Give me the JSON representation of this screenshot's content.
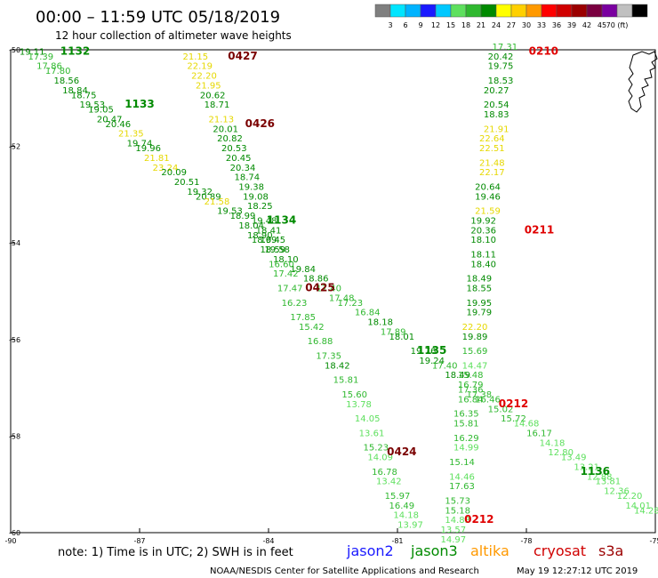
{
  "header": {
    "title": "00:00 – 11:59 UTC 05/18/2019",
    "subtitle": "12 hour collection of altimeter wave heights"
  },
  "colorbar": {
    "colors": [
      "#7f7f7f",
      "#00e5ff",
      "#00b3ff",
      "#1a1aff",
      "#00c8ff",
      "#5ee05e",
      "#2fb82f",
      "#008a00",
      "#ffff00",
      "#ffd000",
      "#ff9900",
      "#ff0000",
      "#d00000",
      "#9b0000",
      "#7a0040",
      "#7a00a0",
      "#c0c0c0",
      "#000000"
    ],
    "labels": [
      "3",
      "6",
      "9",
      "12",
      "15",
      "18",
      "21",
      "24",
      "27",
      "30",
      "33",
      "36",
      "39",
      "42",
      "45",
      "70 (ft)"
    ]
  },
  "footer": {
    "note": "note: 1) Time is in UTC; 2) SWH is in feet",
    "satellites": [
      {
        "name": "jason2",
        "color": "#1a1aff"
      },
      {
        "name": "jason3",
        "color": "#008a00"
      },
      {
        "name": "altika",
        "color": "#ff9900"
      },
      {
        "name": "cryosat",
        "color": "#d00000"
      },
      {
        "name": "s3a",
        "color": "#9b0000"
      }
    ],
    "credit": "NOAA/NESDIS Center for Satellite Applications and Research",
    "timestamp": "May 19 12:27:12 UTC 2019"
  },
  "chart_data": {
    "type": "scatter",
    "title": "00:00 – 11:59 UTC 05/18/2019",
    "xlabel": "",
    "ylabel": "",
    "xlim": [
      -90,
      -75
    ],
    "ylim": [
      -60,
      -50
    ],
    "x_ticks": [
      "-90",
      "-87",
      "-84",
      "-81",
      "-78",
      "-75"
    ],
    "y_ticks": [
      "-50",
      "-52",
      "-54",
      "-56",
      "-58",
      "-60"
    ],
    "color_map": {
      "18": "#008a00",
      "21": "#2fb82f",
      "15": "#5ee05e",
      "24": "#ffff00",
      "27": "#ffd000"
    },
    "tracks": [
      {
        "id": "descending-long",
        "points": [
          [
            -89.5,
            -50.1,
            "19.11"
          ],
          [
            -89.3,
            -50.2,
            "17.39"
          ],
          [
            -89.1,
            -50.4,
            "17.86"
          ],
          [
            -88.9,
            -50.5,
            "17.80"
          ],
          [
            -88.7,
            -50.7,
            "18.56"
          ],
          [
            -88.5,
            -50.9,
            "18.84"
          ],
          [
            -88.3,
            -51.0,
            "18.75"
          ],
          [
            -88.1,
            -51.2,
            "19.53"
          ],
          [
            -87.9,
            -51.3,
            "19.05"
          ],
          [
            -87.7,
            -51.5,
            "20.47"
          ],
          [
            -87.5,
            -51.6,
            "20.46"
          ],
          [
            -87.2,
            -51.8,
            "21.35"
          ],
          [
            -87.0,
            -52.0,
            "19.74"
          ],
          [
            -86.8,
            -52.1,
            "19.96"
          ],
          [
            -86.6,
            -52.3,
            "21.81"
          ],
          [
            -86.4,
            -52.5,
            "23.24"
          ],
          [
            -86.2,
            -52.6,
            "20.09"
          ],
          [
            -85.9,
            -52.8,
            "20.51"
          ],
          [
            -85.6,
            -53.0,
            "19.32"
          ],
          [
            -85.4,
            -53.1,
            "20.89"
          ],
          [
            -85.2,
            -53.2,
            "21.58"
          ],
          [
            -84.9,
            -53.4,
            "19.53"
          ],
          [
            -84.6,
            -53.5,
            "18.99"
          ],
          [
            -84.4,
            -53.7,
            "18.04"
          ],
          [
            -84.2,
            -53.9,
            "18.90"
          ],
          [
            -84.1,
            -54.0,
            "18.69"
          ],
          [
            -83.9,
            -54.2,
            "18.59"
          ],
          [
            -83.6,
            -54.4,
            "18.10"
          ],
          [
            -83.2,
            -54.6,
            "19.84"
          ],
          [
            -82.9,
            -54.8,
            "18.86"
          ],
          [
            -82.6,
            -55.0,
            "17.40"
          ],
          [
            -82.3,
            -55.2,
            "17.48"
          ],
          [
            -82.1,
            -55.3,
            "17.23"
          ],
          [
            -81.7,
            -55.5,
            "16.84"
          ],
          [
            -81.4,
            -55.7,
            "18.18"
          ],
          [
            -81.1,
            -55.9,
            "17.89"
          ],
          [
            -80.9,
            -56.0,
            "18.01"
          ],
          [
            -80.4,
            -56.3,
            "19.76"
          ],
          [
            -80.2,
            -56.5,
            "19.24"
          ],
          [
            -79.9,
            -56.6,
            "17.40"
          ],
          [
            -79.6,
            -56.8,
            "18.49"
          ],
          [
            -79.3,
            -57.0,
            "16.79"
          ],
          [
            -79.1,
            -57.2,
            "17.38"
          ],
          [
            -78.9,
            -57.3,
            "16.46"
          ],
          [
            -78.6,
            -57.5,
            "15.02"
          ],
          [
            -78.3,
            -57.7,
            "15.72"
          ],
          [
            -78.0,
            -57.8,
            "14.68"
          ],
          [
            -77.7,
            -58.0,
            "16.17"
          ],
          [
            -77.4,
            -58.2,
            "14.18"
          ],
          [
            -77.2,
            -58.4,
            "12.80"
          ],
          [
            -76.9,
            -58.5,
            "13.49"
          ],
          [
            -76.6,
            -58.7,
            "13.21"
          ],
          [
            -76.3,
            -58.9,
            "12.88"
          ],
          [
            -76.1,
            -59.0,
            "13.81"
          ],
          [
            -75.9,
            -59.2,
            "12.36"
          ],
          [
            -75.6,
            -59.3,
            "12.20"
          ],
          [
            -75.4,
            -59.5,
            "14.01"
          ],
          [
            -75.2,
            -59.6,
            "14.28"
          ]
        ]
      },
      {
        "id": "descending-0427",
        "points": [
          [
            -85.7,
            -50.2,
            "21.15"
          ],
          [
            -85.6,
            -50.4,
            "22.19"
          ],
          [
            -85.5,
            -50.6,
            "22.20"
          ],
          [
            -85.4,
            -50.8,
            "21.95"
          ],
          [
            -85.3,
            -51.0,
            "20.62"
          ],
          [
            -85.2,
            -51.2,
            "18.71"
          ],
          [
            -85.1,
            -51.5,
            "21.13"
          ],
          [
            -85.0,
            -51.7,
            "20.01"
          ],
          [
            -84.9,
            -51.9,
            "20.82"
          ],
          [
            -84.8,
            -52.1,
            "20.53"
          ],
          [
            -84.7,
            -52.3,
            "20.45"
          ],
          [
            -84.6,
            -52.5,
            "20.34"
          ],
          [
            -84.5,
            -52.7,
            "18.74"
          ],
          [
            -84.4,
            -52.9,
            "19.38"
          ],
          [
            -84.3,
            -53.1,
            "19.08"
          ],
          [
            -84.2,
            -53.3,
            "18.25"
          ],
          [
            -84.1,
            -53.6,
            "19.48"
          ],
          [
            -84.0,
            -53.8,
            "18.41"
          ],
          [
            -83.9,
            -54.0,
            "19.45"
          ],
          [
            -83.8,
            -54.2,
            "19.58"
          ],
          [
            -83.7,
            -54.5,
            "16.60"
          ],
          [
            -83.6,
            -54.7,
            "17.42"
          ],
          [
            -83.5,
            -55.0,
            "17.47"
          ],
          [
            -83.4,
            -55.3,
            "16.23"
          ],
          [
            -83.2,
            -55.6,
            "17.85"
          ],
          [
            -83.0,
            -55.8,
            "15.42"
          ],
          [
            -82.8,
            -56.1,
            "16.88"
          ],
          [
            -82.6,
            -56.4,
            "17.35"
          ],
          [
            -82.4,
            -56.6,
            "18.42"
          ],
          [
            -82.2,
            -56.9,
            "15.81"
          ],
          [
            -82.0,
            -57.2,
            "15.60"
          ],
          [
            -81.9,
            -57.4,
            "13.78"
          ],
          [
            -81.7,
            -57.7,
            "14.05"
          ],
          [
            -81.6,
            -58.0,
            "13.61"
          ],
          [
            -81.5,
            -58.3,
            "15.23"
          ],
          [
            -81.4,
            -58.5,
            "14.09"
          ],
          [
            -81.3,
            -58.8,
            "16.78"
          ],
          [
            -81.2,
            -59.0,
            "13.42"
          ],
          [
            -81.0,
            -59.3,
            "15.97"
          ],
          [
            -80.9,
            -59.5,
            "16.49"
          ],
          [
            -80.8,
            -59.7,
            "14.18"
          ],
          [
            -80.7,
            -59.9,
            "13.97"
          ]
        ]
      },
      {
        "id": "ascending-0212",
        "points": [
          [
            -78.5,
            -50.0,
            "17.31"
          ],
          [
            -78.6,
            -50.2,
            "20.42"
          ],
          [
            -78.6,
            -50.4,
            "19.75"
          ],
          [
            -78.6,
            -50.7,
            "18.53"
          ],
          [
            -78.7,
            -50.9,
            "20.27"
          ],
          [
            -78.7,
            -51.2,
            "20.54"
          ],
          [
            -78.7,
            -51.4,
            "18.83"
          ],
          [
            -78.7,
            -51.7,
            "21.91"
          ],
          [
            -78.8,
            -51.9,
            "22.64"
          ],
          [
            -78.8,
            -52.1,
            "22.51"
          ],
          [
            -78.8,
            -52.4,
            "21.48"
          ],
          [
            -78.8,
            -52.6,
            "22.17"
          ],
          [
            -78.9,
            -52.9,
            "20.64"
          ],
          [
            -78.9,
            -53.1,
            "19.46"
          ],
          [
            -78.9,
            -53.4,
            "21.59"
          ],
          [
            -79.0,
            -53.6,
            "19.92"
          ],
          [
            -79.0,
            -53.8,
            "20.36"
          ],
          [
            -79.0,
            -54.0,
            "18.10"
          ],
          [
            -79.0,
            -54.3,
            "18.11"
          ],
          [
            -79.0,
            -54.5,
            "18.40"
          ],
          [
            -79.1,
            -54.8,
            "18.49"
          ],
          [
            -79.1,
            -55.0,
            "18.55"
          ],
          [
            -79.1,
            -55.3,
            "19.95"
          ],
          [
            -79.1,
            -55.5,
            "19.79"
          ],
          [
            -79.2,
            -55.8,
            "22.20"
          ],
          [
            -79.2,
            -56.0,
            "19.89"
          ],
          [
            -79.2,
            -56.3,
            "15.69"
          ],
          [
            -79.2,
            -56.6,
            "14.47"
          ],
          [
            -79.3,
            -56.8,
            "15.48"
          ],
          [
            -79.3,
            -57.1,
            "17.36"
          ],
          [
            -79.3,
            -57.3,
            "16.84"
          ],
          [
            -79.4,
            -57.6,
            "16.35"
          ],
          [
            -79.4,
            -57.8,
            "15.81"
          ],
          [
            -79.4,
            -58.1,
            "16.29"
          ],
          [
            -79.4,
            -58.3,
            "14.99"
          ],
          [
            -79.5,
            -58.6,
            "15.14"
          ],
          [
            -79.5,
            -58.9,
            "14.46"
          ],
          [
            -79.5,
            -59.1,
            "17.63"
          ],
          [
            -79.6,
            -59.4,
            "15.73"
          ],
          [
            -79.6,
            -59.6,
            "15.18"
          ],
          [
            -79.6,
            -59.8,
            "14.83"
          ],
          [
            -79.7,
            -60.0,
            "13.57"
          ],
          [
            -79.7,
            -60.2,
            "14.97"
          ]
        ]
      }
    ],
    "annotations": [
      {
        "text": "1132",
        "lon": -88.5,
        "lat": -50.1,
        "color": "#008a00"
      },
      {
        "text": "1133",
        "lon": -87.0,
        "lat": -51.2,
        "color": "#008a00"
      },
      {
        "text": "1134",
        "lon": -83.7,
        "lat": -53.6,
        "color": "#008a00"
      },
      {
        "text": "1135",
        "lon": -80.2,
        "lat": -56.3,
        "color": "#008a00"
      },
      {
        "text": "1136",
        "lon": -76.4,
        "lat": -58.8,
        "color": "#008a00"
      },
      {
        "text": "0427",
        "lon": -84.6,
        "lat": -50.2,
        "color": "#7a0000"
      },
      {
        "text": "0426",
        "lon": -84.2,
        "lat": -51.6,
        "color": "#7a0000"
      },
      {
        "text": "0425",
        "lon": -82.8,
        "lat": -55.0,
        "color": "#7a0000"
      },
      {
        "text": "0424",
        "lon": -80.9,
        "lat": -58.4,
        "color": "#7a0000"
      },
      {
        "text": "0210",
        "lon": -77.6,
        "lat": -50.1,
        "color": "#e00000"
      },
      {
        "text": "0211",
        "lon": -77.7,
        "lat": -53.8,
        "color": "#e00000"
      },
      {
        "text": "0212",
        "lon": -78.3,
        "lat": -57.4,
        "color": "#e00000"
      },
      {
        "text": "0212",
        "lon": -79.1,
        "lat": -59.8,
        "color": "#e00000"
      }
    ]
  }
}
